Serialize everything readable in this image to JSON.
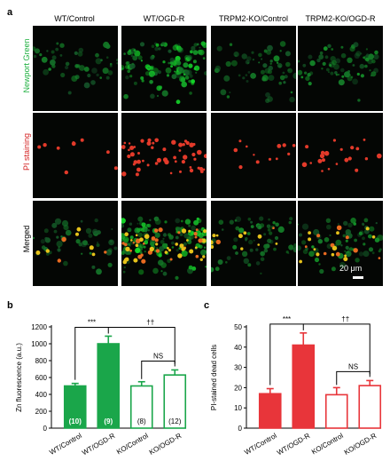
{
  "panel_a": {
    "letter": "a",
    "columns": [
      "WT/Control",
      "WT/OGD-R",
      "TRPM2-KO/Control",
      "TRPM2-KO/OGD-R"
    ],
    "rows": [
      {
        "label": "Newport Green",
        "color": "#1fb040"
      },
      {
        "label": "PI staining",
        "color": "#d42020"
      },
      {
        "label": "Merged",
        "color": "#000000"
      }
    ],
    "scale_bar": "20 μm"
  },
  "panel_b": {
    "letter": "b",
    "sig_main": "***",
    "sig_ko": "††",
    "sig_ns": "NS"
  },
  "panel_c": {
    "letter": "c",
    "sig_main": "***",
    "sig_ko": "††",
    "sig_ns": "NS"
  },
  "chart_data": [
    {
      "type": "bar",
      "categories": [
        "WT/Control",
        "WT/OGD-R",
        "KO/Control",
        "KO/OGD-R"
      ],
      "values": [
        500,
        1000,
        500,
        630
      ],
      "errors": [
        30,
        90,
        50,
        60
      ],
      "n_labels": [
        "(10)",
        "(9)",
        "(8)",
        "(12)"
      ],
      "ylabel": "Zn fluorescence (a.u.)",
      "ylim": [
        0,
        1200
      ],
      "yticks": [
        0,
        200,
        400,
        600,
        800,
        1000,
        1200
      ],
      "colors": [
        "#1aa64a",
        "#1aa64a",
        "#ffffff",
        "#ffffff"
      ],
      "edge_color": "#1aa64a"
    },
    {
      "type": "bar",
      "categories": [
        "WT/Control",
        "WT/OGD-R",
        "KO/Control",
        "KO/OGD-R"
      ],
      "values": [
        17,
        41,
        16.5,
        21
      ],
      "errors": [
        2.5,
        6,
        3.5,
        2.5
      ],
      "ylabel": "PI-stained dead cells",
      "ylim": [
        0,
        50
      ],
      "yticks": [
        0,
        10,
        20,
        30,
        40,
        50
      ],
      "colors": [
        "#e8353a",
        "#e8353a",
        "#ffffff",
        "#ffffff"
      ],
      "edge_color": "#e8353a"
    }
  ]
}
